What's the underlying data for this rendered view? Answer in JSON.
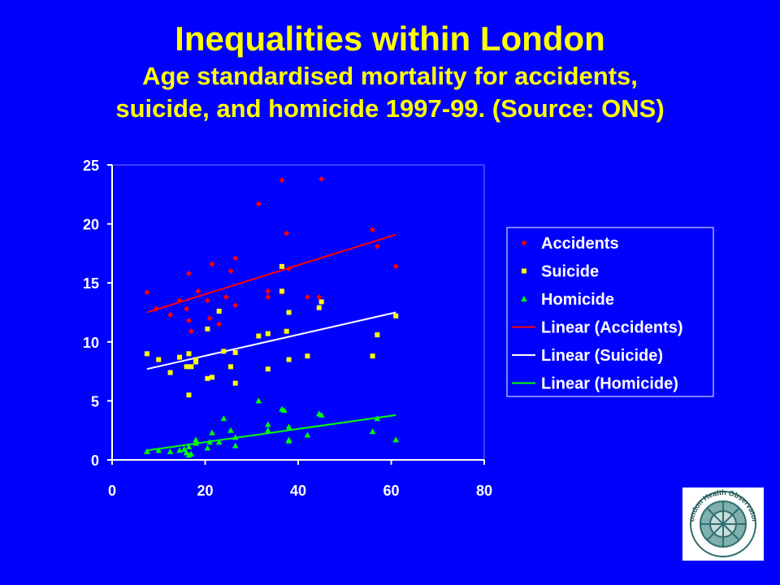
{
  "title": "Inequalities within London",
  "subtitle_line1": "Age standardised mortality for accidents,",
  "subtitle_line2": "suicide, and homicide 1997-99. (Source: ONS)",
  "logo_text": "London Health Observatory",
  "colors": {
    "background": "#0000FF",
    "title": "#FFFF00",
    "accidents": "#FF0000",
    "suicide": "#FFFF00",
    "homicide": "#00FF00",
    "linear_suicide": "#FFFFFF",
    "axis": "#FFFFFF"
  },
  "chart_data": {
    "type": "scatter",
    "title": "",
    "xlabel": "",
    "ylabel": "",
    "xlim": [
      0,
      80
    ],
    "ylim": [
      0,
      25
    ],
    "xticks": [
      0,
      20,
      40,
      60,
      80
    ],
    "yticks": [
      0,
      5,
      10,
      15,
      20,
      25
    ],
    "grid": false,
    "legend_position": "right",
    "series": [
      {
        "name": "Accidents",
        "marker": "diamond",
        "color": "#FF0000",
        "points": [
          [
            7.5,
            14.2
          ],
          [
            9.5,
            12.8
          ],
          [
            12.5,
            12.3
          ],
          [
            14.5,
            13.5
          ],
          [
            16,
            12.8
          ],
          [
            16.5,
            15.8
          ],
          [
            16.5,
            11.8
          ],
          [
            17,
            10.9
          ],
          [
            18.5,
            14.3
          ],
          [
            20.5,
            13.5
          ],
          [
            21,
            12
          ],
          [
            21.5,
            16.6
          ],
          [
            23,
            11.5
          ],
          [
            24.5,
            13.8
          ],
          [
            25.5,
            16
          ],
          [
            26.5,
            13.1
          ],
          [
            26.5,
            17.1
          ],
          [
            31.5,
            21.7
          ],
          [
            33.5,
            13.8
          ],
          [
            33.5,
            14.3
          ],
          [
            36.5,
            23.7
          ],
          [
            36.5,
            14.2
          ],
          [
            37.5,
            19.2
          ],
          [
            38,
            16.2
          ],
          [
            42,
            13.8
          ],
          [
            44.5,
            13.8
          ],
          [
            45,
            23.8
          ],
          [
            56,
            19.5
          ],
          [
            57,
            18.1
          ],
          [
            61,
            16.4
          ]
        ]
      },
      {
        "name": "Suicide",
        "marker": "square",
        "color": "#FFFF00",
        "points": [
          [
            7.5,
            9
          ],
          [
            10,
            8.5
          ],
          [
            12.5,
            7.4
          ],
          [
            14.5,
            8.7
          ],
          [
            16,
            7.9
          ],
          [
            16.5,
            5.5
          ],
          [
            16.5,
            9
          ],
          [
            17,
            7.9
          ],
          [
            18,
            8.5
          ],
          [
            18,
            8.3
          ],
          [
            20.5,
            11.1
          ],
          [
            20.5,
            6.9
          ],
          [
            21.5,
            7
          ],
          [
            23,
            12.6
          ],
          [
            24,
            9.2
          ],
          [
            25.5,
            7.9
          ],
          [
            26.5,
            9.1
          ],
          [
            26.5,
            6.5
          ],
          [
            31.5,
            10.5
          ],
          [
            33.5,
            10.7
          ],
          [
            33.5,
            7.7
          ],
          [
            36.5,
            16.4
          ],
          [
            36.5,
            14.3
          ],
          [
            37.5,
            10.9
          ],
          [
            38,
            8.5
          ],
          [
            38,
            12.5
          ],
          [
            42,
            8.8
          ],
          [
            44.5,
            12.9
          ],
          [
            45,
            13.4
          ],
          [
            56,
            8.8
          ],
          [
            57,
            10.6
          ],
          [
            61,
            12.2
          ]
        ]
      },
      {
        "name": "Homicide",
        "marker": "triangle",
        "color": "#00FF00",
        "points": [
          [
            7.5,
            0.7
          ],
          [
            10,
            0.8
          ],
          [
            12.5,
            0.7
          ],
          [
            14.5,
            0.8
          ],
          [
            15.5,
            0.9
          ],
          [
            16,
            0.6
          ],
          [
            16.5,
            0.4
          ],
          [
            16.5,
            1.1
          ],
          [
            17,
            0.5
          ],
          [
            18,
            1.4
          ],
          [
            18,
            1.7
          ],
          [
            20.5,
            1
          ],
          [
            21,
            1.5
          ],
          [
            21.5,
            2.3
          ],
          [
            23,
            1.5
          ],
          [
            24,
            3.5
          ],
          [
            25.5,
            2.5
          ],
          [
            26.5,
            1.2
          ],
          [
            26.5,
            1.9
          ],
          [
            31.5,
            5
          ],
          [
            33.5,
            2.5
          ],
          [
            33.5,
            3
          ],
          [
            36.5,
            4.3
          ],
          [
            37,
            4.2
          ],
          [
            38,
            1.7
          ],
          [
            38,
            2.8
          ],
          [
            38,
            1.6
          ],
          [
            42,
            2.1
          ],
          [
            44.5,
            3.9
          ],
          [
            45,
            3.8
          ],
          [
            56,
            2.4
          ],
          [
            57,
            3.5
          ],
          [
            61,
            1.7
          ]
        ]
      }
    ],
    "trendlines": [
      {
        "name": "Linear (Accidents)",
        "color": "#FF0000",
        "x": [
          7.5,
          61
        ],
        "y": [
          12.5,
          19.1
        ]
      },
      {
        "name": "Linear (Suicide)",
        "color": "#FFFFFF",
        "x": [
          7.5,
          61
        ],
        "y": [
          7.7,
          12.5
        ]
      },
      {
        "name": "Linear (Homicide)",
        "color": "#00FF00",
        "x": [
          7.5,
          61
        ],
        "y": [
          0.8,
          3.8
        ]
      }
    ]
  }
}
